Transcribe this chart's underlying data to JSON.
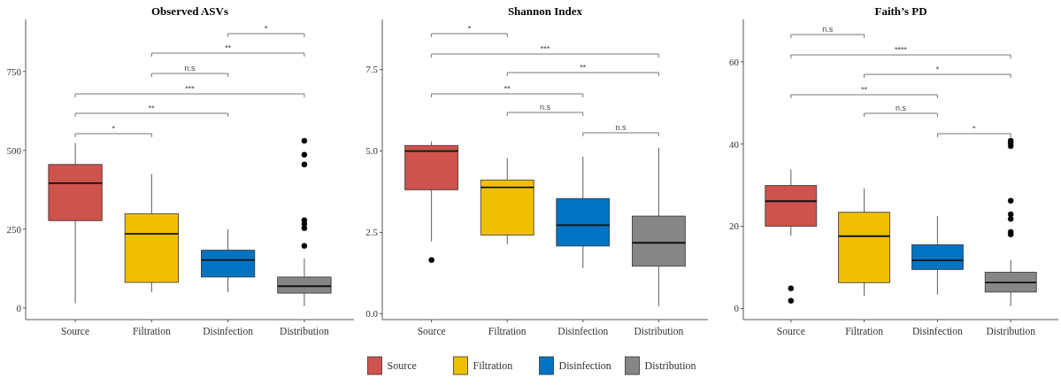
{
  "chart_data": [
    {
      "type": "box",
      "title": "Observed ASVs",
      "categories": [
        "Source",
        "Filtration",
        "Disinfection",
        "Distribution"
      ],
      "colors": [
        "#cd534c",
        "#efc000",
        "#0073c2",
        "#868686"
      ],
      "boxes": [
        {
          "low": 15,
          "q1": 277,
          "median": 396,
          "q3": 455,
          "high": 523
        },
        {
          "low": 50,
          "q1": 81,
          "median": 235,
          "q3": 299,
          "high": 425
        },
        {
          "low": 50,
          "q1": 98,
          "median": 152,
          "q3": 183,
          "high": 250
        },
        {
          "low": 6,
          "q1": 47,
          "median": 69,
          "q3": 98,
          "high": 157,
          "outliers": [
            530,
            486,
            455,
            278,
            266,
            253,
            197
          ]
        }
      ],
      "ylim": [
        -37,
        915
      ],
      "yticks": [
        0,
        250,
        500,
        750
      ],
      "grid": false,
      "annotations": [
        "*",
        "**",
        "***",
        "n.s",
        "**",
        "*"
      ]
    },
    {
      "type": "box",
      "title": "Shannon Index",
      "categories": [
        "Source",
        "Filtration",
        "Disinfection",
        "Distribution"
      ],
      "colors": [
        "#cd534c",
        "#efc000",
        "#0073c2",
        "#868686"
      ],
      "boxes": [
        {
          "low": 2.22,
          "q1": 3.81,
          "median": 5.0,
          "q3": 5.17,
          "high": 5.29,
          "outliers": [
            1.65
          ]
        },
        {
          "low": 2.13,
          "q1": 2.42,
          "median": 3.88,
          "q3": 4.11,
          "high": 4.78
        },
        {
          "low": 1.4,
          "q1": 2.08,
          "median": 2.72,
          "q3": 3.54,
          "high": 4.83
        },
        {
          "low": 0.23,
          "q1": 1.46,
          "median": 2.18,
          "q3": 3.0,
          "high": 5.1
        }
      ],
      "ylim": [
        -0.18,
        9.04
      ],
      "yticks": [
        {
          "value": 0,
          "label": "0.0"
        },
        {
          "value": 2.5,
          "label": "2.5"
        },
        {
          "value": 5,
          "label": "5.0"
        },
        {
          "value": 7.5,
          "label": "7.5"
        }
      ],
      "grid": false,
      "annotations": [
        "*",
        "***",
        "**",
        "**",
        "n.s",
        "n.s"
      ]
    },
    {
      "type": "box",
      "title": "Faith’s PD",
      "categories": [
        "Source",
        "Filtration",
        "Disinfection",
        "Distribution"
      ],
      "colors": [
        "#cd534c",
        "#efc000",
        "#0073c2",
        "#868686"
      ],
      "boxes": [
        {
          "low": 17.7,
          "q1": 20.0,
          "median": 26.1,
          "q3": 29.9,
          "high": 33.8,
          "outliers": [
            4.9,
            1.9
          ]
        },
        {
          "low": 3.1,
          "q1": 6.3,
          "median": 17.6,
          "q3": 23.4,
          "high": 29.2
        },
        {
          "low": 3.4,
          "q1": 9.5,
          "median": 11.7,
          "q3": 15.5,
          "high": 22.5
        },
        {
          "low": 0.6,
          "q1": 4.0,
          "median": 6.3,
          "q3": 8.8,
          "high": 11.8,
          "outliers": [
            40.8,
            40.2,
            39.5,
            26.2,
            22.9,
            21.8,
            18.6,
            18.0
          ]
        }
      ],
      "ylim": [
        -2.7,
        70.3
      ],
      "yticks": [
        0,
        20,
        40,
        60
      ],
      "grid": false,
      "annotations": [
        "n.s",
        "****",
        "*",
        "**",
        "n.s",
        "*"
      ]
    }
  ]
}
